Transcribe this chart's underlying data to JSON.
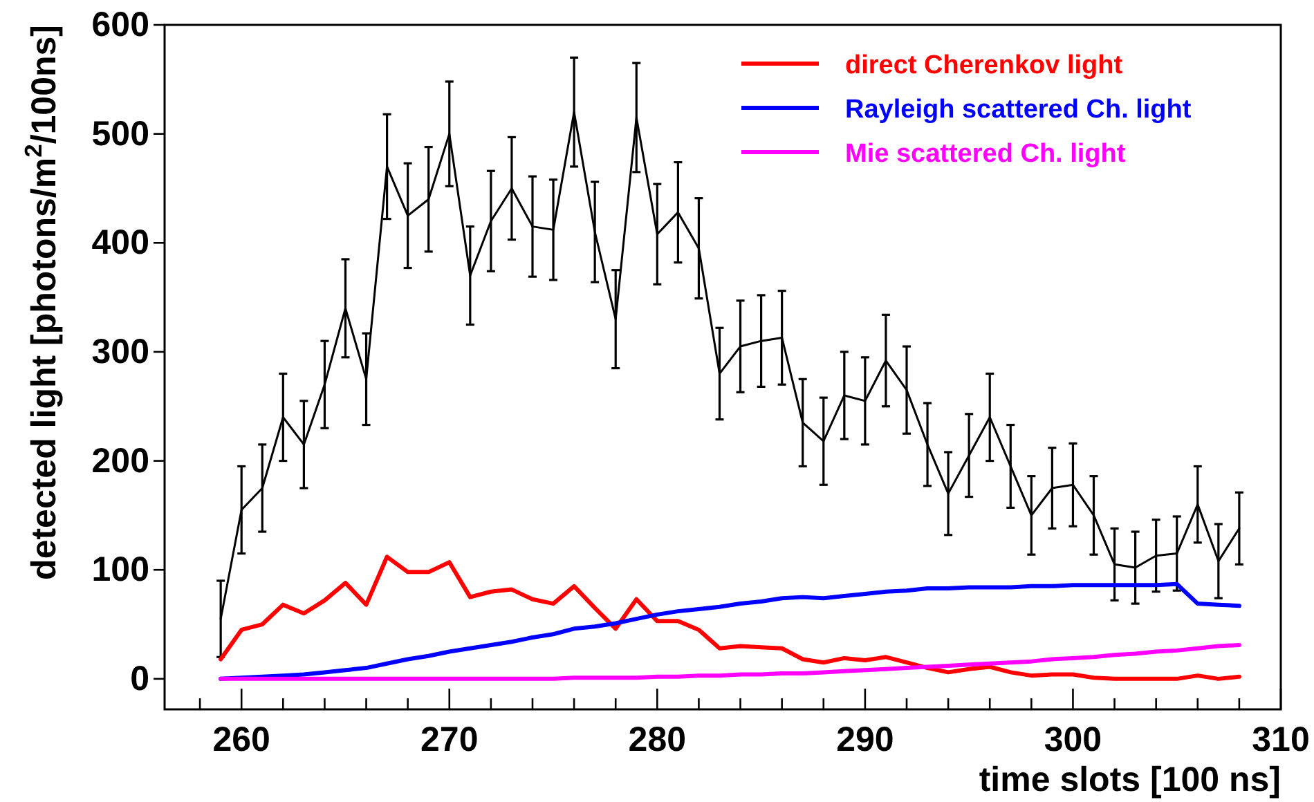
{
  "chart_data": {
    "type": "line",
    "xlabel": "time slots [100 ns]",
    "ylabel": "detected light [photons/m$^{2}$/100ns]",
    "x": [
      259,
      260,
      261,
      262,
      263,
      264,
      265,
      266,
      267,
      268,
      269,
      270,
      271,
      272,
      273,
      274,
      275,
      276,
      277,
      278,
      279,
      280,
      281,
      282,
      283,
      284,
      285,
      286,
      287,
      288,
      289,
      290,
      291,
      292,
      293,
      294,
      295,
      296,
      297,
      298,
      299,
      300,
      301,
      302,
      303,
      304,
      305,
      306,
      307,
      308
    ],
    "xlim": [
      256.3,
      310
    ],
    "xticks": [
      {
        "value": 258,
        "label": null
      },
      260,
      {
        "value": 262,
        "label": null
      },
      {
        "value": 264,
        "label": null
      },
      {
        "value": 266,
        "label": null
      },
      {
        "value": 268,
        "label": null
      },
      270,
      {
        "value": 272,
        "label": null
      },
      {
        "value": 274,
        "label": null
      },
      {
        "value": 276,
        "label": null
      },
      {
        "value": 278,
        "label": null
      },
      280,
      {
        "value": 282,
        "label": null
      },
      {
        "value": 284,
        "label": null
      },
      {
        "value": 286,
        "label": null
      },
      {
        "value": 288,
        "label": null
      },
      290,
      {
        "value": 292,
        "label": null
      },
      {
        "value": 294,
        "label": null
      },
      {
        "value": 296,
        "label": null
      },
      {
        "value": 298,
        "label": null
      },
      300,
      {
        "value": 302,
        "label": null
      },
      {
        "value": 304,
        "label": null
      },
      {
        "value": 306,
        "label": null
      },
      {
        "value": 308,
        "label": null
      },
      310
    ],
    "ylim": [
      -28,
      600
    ],
    "yticks": [
      0,
      100,
      200,
      300,
      400,
      500,
      600
    ],
    "grid": false,
    "legend": "top right",
    "marker": "none",
    "line_style": "solid",
    "series": [
      {
        "color": "#000000",
        "values": [
          55,
          155,
          175,
          240,
          215,
          270,
          340,
          275,
          470,
          425,
          440,
          500,
          370,
          420,
          450,
          415,
          412,
          520,
          410,
          330,
          515,
          408,
          428,
          395,
          280,
          305,
          310,
          313,
          235,
          218,
          260,
          255,
          292,
          265,
          215,
          170,
          205,
          240,
          195,
          150,
          175,
          178,
          150,
          105,
          102,
          113,
          115,
          160,
          108,
          138
        ],
        "errors": [
          35,
          40,
          40,
          40,
          40,
          40,
          45,
          42,
          48,
          48,
          48,
          48,
          45,
          46,
          47,
          46,
          46,
          50,
          46,
          45,
          50,
          46,
          46,
          46,
          42,
          42,
          42,
          43,
          40,
          40,
          40,
          40,
          42,
          40,
          38,
          38,
          38,
          40,
          38,
          36,
          37,
          38,
          36,
          33,
          33,
          33,
          34,
          35,
          34,
          33
        ]
      },
      {
        "name": "direct Cherenkov light",
        "color": "#ff0000",
        "values": [
          18,
          45,
          50,
          68,
          60,
          72,
          88,
          68,
          112,
          98,
          98,
          107,
          75,
          80,
          82,
          73,
          69,
          85,
          65,
          46,
          73,
          53,
          53,
          45,
          28,
          30,
          29,
          28,
          18,
          15,
          19,
          17,
          20,
          15,
          10,
          6,
          9,
          11,
          6,
          3,
          4,
          4,
          1,
          0,
          0,
          0,
          0,
          3,
          0,
          2
        ]
      },
      {
        "name": "Rayleigh scattered Ch. light",
        "color": "#0000ff",
        "values": [
          0,
          1,
          2,
          3,
          4,
          6,
          8,
          10,
          14,
          18,
          21,
          25,
          28,
          31,
          34,
          38,
          41,
          46,
          48,
          51,
          55,
          59,
          62,
          64,
          66,
          69,
          71,
          74,
          75,
          74,
          76,
          78,
          80,
          81,
          83,
          83,
          84,
          84,
          84,
          85,
          85,
          86,
          86,
          86,
          86,
          86,
          87,
          69,
          68,
          67
        ]
      },
      {
        "name": "Mie scattered Ch. light",
        "color": "#ff00ff",
        "values": [
          0,
          0,
          0,
          0,
          0,
          0,
          0,
          0,
          0,
          0,
          0,
          0,
          0,
          0,
          0,
          0,
          0,
          1,
          1,
          1,
          1,
          2,
          2,
          3,
          3,
          4,
          4,
          5,
          5,
          6,
          7,
          8,
          9,
          10,
          11,
          12,
          13,
          14,
          15,
          16,
          18,
          19,
          20,
          22,
          23,
          25,
          26,
          28,
          30,
          31
        ]
      }
    ]
  }
}
